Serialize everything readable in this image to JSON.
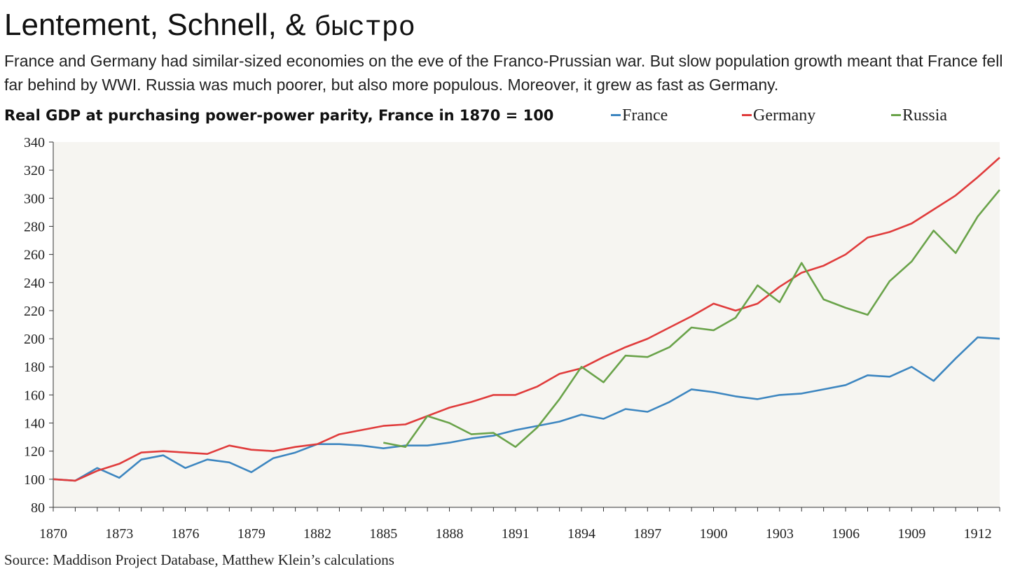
{
  "header": {
    "title_main": "Lentement, Schnell, & ",
    "title_cyrillic": "быстро",
    "subtitle": "France and Germany had similar-sized economies on the eve of the Franco-Prussian war. But slow population growth meant that France fell far behind by WWI. Russia was much poorer, but also more populous. Moreover, it grew as fast as Germany.",
    "chart_heading": "Real GDP at purchasing power-power parity, France in 1870 = 100"
  },
  "source": "Source: Maddison Project Database, Matthew Klein’s calculations",
  "colors": {
    "France": "#3d86c0",
    "Germany": "#e03c3c",
    "Russia": "#6aa34a",
    "plot_background": "#f6f5f1",
    "axis": "#333333"
  },
  "chart_data": {
    "type": "line",
    "title": "Real GDP at purchasing power-power parity, France in 1870 = 100",
    "xlabel": "",
    "ylabel": "",
    "x": [
      1870,
      1871,
      1872,
      1873,
      1874,
      1875,
      1876,
      1877,
      1878,
      1879,
      1880,
      1881,
      1882,
      1883,
      1884,
      1885,
      1886,
      1887,
      1888,
      1889,
      1890,
      1891,
      1892,
      1893,
      1894,
      1895,
      1896,
      1897,
      1898,
      1899,
      1900,
      1901,
      1902,
      1903,
      1904,
      1905,
      1906,
      1907,
      1908,
      1909,
      1910,
      1911,
      1912,
      1913
    ],
    "xlim": [
      1870,
      1913
    ],
    "ylim": [
      80,
      340
    ],
    "x_ticks": [
      1870,
      1873,
      1876,
      1879,
      1882,
      1885,
      1888,
      1891,
      1894,
      1897,
      1900,
      1903,
      1906,
      1909,
      1912
    ],
    "y_ticks": [
      80,
      100,
      120,
      140,
      160,
      180,
      200,
      220,
      240,
      260,
      280,
      300,
      320,
      340
    ],
    "legend_position": "top-right",
    "grid": false,
    "series": [
      {
        "name": "France",
        "values": [
          100,
          99,
          108,
          101,
          114,
          117,
          108,
          114,
          112,
          105,
          115,
          119,
          125,
          125,
          124,
          122,
          124,
          124,
          126,
          129,
          131,
          135,
          138,
          141,
          146,
          143,
          150,
          148,
          155,
          164,
          162,
          159,
          157,
          160,
          161,
          164,
          167,
          174,
          173,
          180,
          170,
          186,
          201,
          200
        ]
      },
      {
        "name": "Germany",
        "values": [
          100,
          99,
          106,
          111,
          119,
          120,
          119,
          118,
          124,
          121,
          120,
          123,
          125,
          132,
          135,
          138,
          139,
          145,
          151,
          155,
          160,
          160,
          166,
          175,
          179,
          187,
          194,
          200,
          208,
          216,
          225,
          220,
          225,
          237,
          247,
          252,
          260,
          272,
          276,
          282,
          292,
          302,
          315,
          329
        ]
      },
      {
        "name": "Russia",
        "values": [
          null,
          null,
          null,
          null,
          null,
          null,
          null,
          null,
          null,
          null,
          null,
          null,
          null,
          null,
          null,
          126,
          123,
          145,
          140,
          132,
          133,
          123,
          137,
          157,
          180,
          169,
          188,
          187,
          194,
          208,
          206,
          215,
          238,
          226,
          254,
          228,
          222,
          217,
          241,
          255,
          277,
          261,
          287,
          306
        ]
      }
    ]
  }
}
